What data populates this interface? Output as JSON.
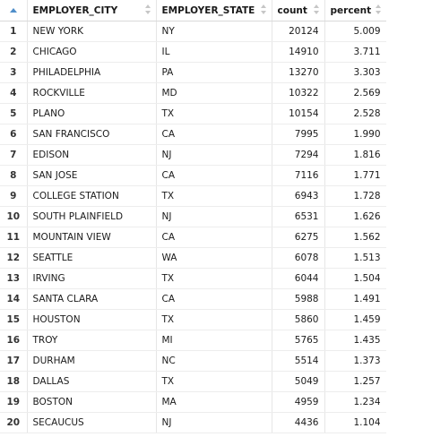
{
  "columns": [
    {
      "label": "EMPLOYER_CITY"
    },
    {
      "label": "EMPLOYER_STATE"
    },
    {
      "label": "count"
    },
    {
      "label": "percent"
    }
  ],
  "rows": [
    {
      "n": "1",
      "city": "NEW YORK",
      "state": "NY",
      "count": "20124",
      "percent": "5.009"
    },
    {
      "n": "2",
      "city": "CHICAGO",
      "state": "IL",
      "count": "14910",
      "percent": "3.711"
    },
    {
      "n": "3",
      "city": "PHILADELPHIA",
      "state": "PA",
      "count": "13270",
      "percent": "3.303"
    },
    {
      "n": "4",
      "city": "ROCKVILLE",
      "state": "MD",
      "count": "10322",
      "percent": "2.569"
    },
    {
      "n": "5",
      "city": "PLANO",
      "state": "TX",
      "count": "10154",
      "percent": "2.528"
    },
    {
      "n": "6",
      "city": "SAN FRANCISCO",
      "state": "CA",
      "count": "7995",
      "percent": "1.990"
    },
    {
      "n": "7",
      "city": "EDISON",
      "state": "NJ",
      "count": "7294",
      "percent": "1.816"
    },
    {
      "n": "8",
      "city": "SAN JOSE",
      "state": "CA",
      "count": "7116",
      "percent": "1.771"
    },
    {
      "n": "9",
      "city": "COLLEGE STATION",
      "state": "TX",
      "count": "6943",
      "percent": "1.728"
    },
    {
      "n": "10",
      "city": "SOUTH PLAINFIELD",
      "state": "NJ",
      "count": "6531",
      "percent": "1.626"
    },
    {
      "n": "11",
      "city": "MOUNTAIN VIEW",
      "state": "CA",
      "count": "6275",
      "percent": "1.562"
    },
    {
      "n": "12",
      "city": "SEATTLE",
      "state": "WA",
      "count": "6078",
      "percent": "1.513"
    },
    {
      "n": "13",
      "city": "IRVING",
      "state": "TX",
      "count": "6044",
      "percent": "1.504"
    },
    {
      "n": "14",
      "city": "SANTA CLARA",
      "state": "CA",
      "count": "5988",
      "percent": "1.491"
    },
    {
      "n": "15",
      "city": "HOUSTON",
      "state": "TX",
      "count": "5860",
      "percent": "1.459"
    },
    {
      "n": "16",
      "city": "TROY",
      "state": "MI",
      "count": "5765",
      "percent": "1.435"
    },
    {
      "n": "17",
      "city": "DURHAM",
      "state": "NC",
      "count": "5514",
      "percent": "1.373"
    },
    {
      "n": "18",
      "city": "DALLAS",
      "state": "TX",
      "count": "5049",
      "percent": "1.257"
    },
    {
      "n": "19",
      "city": "BOSTON",
      "state": "MA",
      "count": "4959",
      "percent": "1.234"
    },
    {
      "n": "20",
      "city": "SECAUCUS",
      "state": "NJ",
      "count": "4436",
      "percent": "1.104"
    }
  ]
}
